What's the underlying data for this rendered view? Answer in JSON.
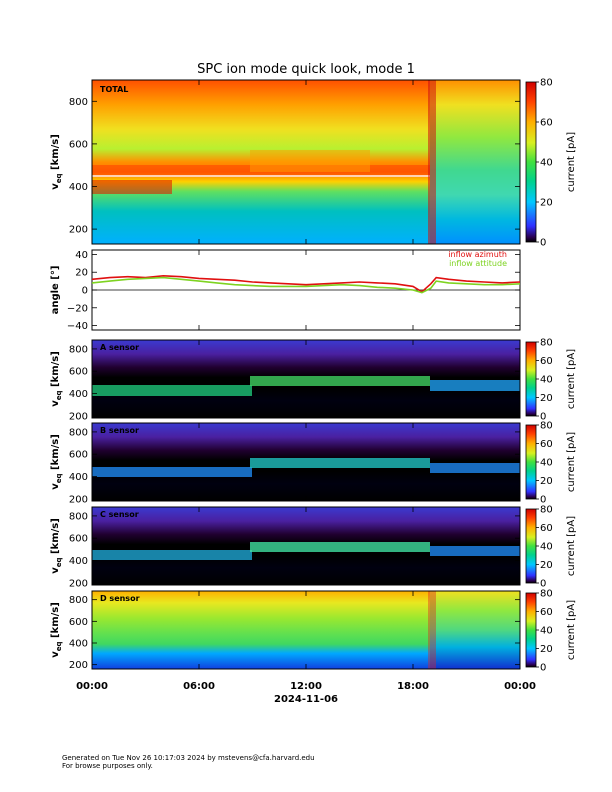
{
  "title": "SPC ion mode quick look, mode 1",
  "date_label": "2024-11-06",
  "x_ticks": [
    "00:00",
    "06:00",
    "12:00",
    "18:00",
    "00:00"
  ],
  "footer": {
    "line1": "Generated on Tue Nov 26 10:17:03 2024 by mstevens@cfa.harvard.edu",
    "line2": "For browse purposes only."
  },
  "chart_data": [
    {
      "type": "heatmap",
      "panel_label": "TOTAL",
      "ylabel": "v",
      "ylabel_sub": "eq",
      "ylabel_unit": "[km/s]",
      "y_ticks": [
        "200",
        "400",
        "600",
        "800"
      ],
      "ylim": [
        130,
        900
      ],
      "colorbar_label": "current [pA]",
      "colorbar_ticks": [
        "0",
        "20",
        "40",
        "60",
        "80"
      ],
      "colorbar_range": [
        0,
        80
      ]
    },
    {
      "type": "line",
      "ylabel": "angle [°]",
      "y_ticks": [
        "−40",
        "−20",
        "0",
        "20",
        "40"
      ],
      "ylim": [
        -45,
        45
      ],
      "series": [
        {
          "name": "inflow azimuth",
          "color": "#e01010",
          "x_hours": [
            0,
            1,
            2,
            3,
            4,
            5,
            6,
            7,
            8,
            9,
            10,
            11,
            12,
            13,
            14,
            15,
            16,
            17,
            18,
            18.5,
            19,
            19.3,
            20,
            21,
            22,
            23,
            24
          ],
          "values": [
            12,
            14,
            15,
            14,
            16,
            15,
            13,
            12,
            11,
            9,
            8,
            7,
            6,
            7,
            8,
            9,
            8,
            7,
            4,
            -2,
            7,
            14,
            12,
            10,
            9,
            8,
            9
          ]
        },
        {
          "name": "inflow attitude",
          "color": "#7ed321",
          "x_hours": [
            0,
            1,
            2,
            3,
            4,
            5,
            6,
            7,
            8,
            9,
            10,
            11,
            12,
            13,
            14,
            15,
            16,
            17,
            18,
            18.5,
            19,
            19.3,
            20,
            21,
            22,
            23,
            24
          ],
          "values": [
            8,
            10,
            12,
            13,
            14,
            12,
            10,
            8,
            6,
            5,
            4,
            4,
            4,
            5,
            6,
            5,
            3,
            2,
            0,
            -3,
            2,
            10,
            8,
            7,
            6,
            6,
            7
          ]
        }
      ]
    },
    {
      "type": "heatmap",
      "panel_label": "A sensor",
      "ylabel": "v",
      "ylabel_sub": "eq",
      "ylabel_unit": "[km/s]",
      "y_ticks": [
        "200",
        "400",
        "600",
        "800"
      ],
      "ylim": [
        180,
        880
      ],
      "colorbar_label": "current [pA]",
      "colorbar_ticks": [
        "0",
        "20",
        "40",
        "60",
        "80"
      ],
      "colorbar_range": [
        0,
        80
      ]
    },
    {
      "type": "heatmap",
      "panel_label": "B sensor",
      "ylabel": "v",
      "ylabel_sub": "eq",
      "ylabel_unit": "[km/s]",
      "y_ticks": [
        "200",
        "400",
        "600",
        "800"
      ],
      "ylim": [
        180,
        880
      ],
      "colorbar_label": "current [pA]",
      "colorbar_ticks": [
        "0",
        "20",
        "40",
        "60",
        "80"
      ],
      "colorbar_range": [
        0,
        80
      ]
    },
    {
      "type": "heatmap",
      "panel_label": "C sensor",
      "ylabel": "v",
      "ylabel_sub": "eq",
      "ylabel_unit": "[km/s]",
      "y_ticks": [
        "200",
        "400",
        "600",
        "800"
      ],
      "ylim": [
        180,
        880
      ],
      "colorbar_label": "current [pA]",
      "colorbar_ticks": [
        "0",
        "20",
        "40",
        "60",
        "80"
      ],
      "colorbar_range": [
        0,
        80
      ]
    },
    {
      "type": "heatmap",
      "panel_label": "D sensor",
      "ylabel": "v",
      "ylabel_sub": "eq",
      "ylabel_unit": "[km/s]",
      "y_ticks": [
        "200",
        "400",
        "600",
        "800"
      ],
      "ylim": [
        160,
        880
      ],
      "colorbar_label": "current [pA]",
      "colorbar_ticks": [
        "0",
        "20",
        "40",
        "60",
        "80"
      ],
      "colorbar_range": [
        0,
        80
      ]
    }
  ]
}
